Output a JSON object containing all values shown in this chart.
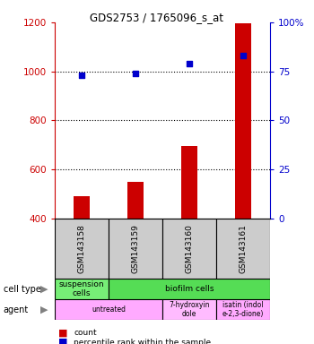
{
  "title": "GDS2753 / 1765096_s_at",
  "samples": [
    "GSM143158",
    "GSM143159",
    "GSM143160",
    "GSM143161"
  ],
  "bar_values": [
    490,
    550,
    695,
    1195
  ],
  "scatter_values": [
    73,
    74,
    79,
    83
  ],
  "ylim_left": [
    400,
    1200
  ],
  "ylim_right": [
    0,
    100
  ],
  "yticks_left": [
    400,
    600,
    800,
    1000,
    1200
  ],
  "yticks_right": [
    0,
    25,
    50,
    75,
    100
  ],
  "bar_color": "#cc0000",
  "scatter_color": "#0000cc",
  "bar_width": 0.3,
  "cell_types": [
    {
      "label": "suspension\ncells",
      "span": 1,
      "color": "#77ee77"
    },
    {
      "label": "biofilm cells",
      "span": 3,
      "color": "#55dd55"
    }
  ],
  "agents": [
    {
      "label": "untreated",
      "span": 2,
      "color": "#ffaaff"
    },
    {
      "label": "7-hydroxyin\ndole",
      "span": 1,
      "color": "#ffbbff"
    },
    {
      "label": "isatin (indol\ne-2,3-dione)",
      "span": 1,
      "color": "#ffaaff"
    }
  ],
  "legend_bar_label": "count",
  "legend_scatter_label": "percentile rank within the sample",
  "left_axis_color": "#cc0000",
  "right_axis_color": "#0000cc",
  "sample_box_color": "#cccccc",
  "grid_dotted_ticks": [
    600,
    800,
    1000
  ]
}
